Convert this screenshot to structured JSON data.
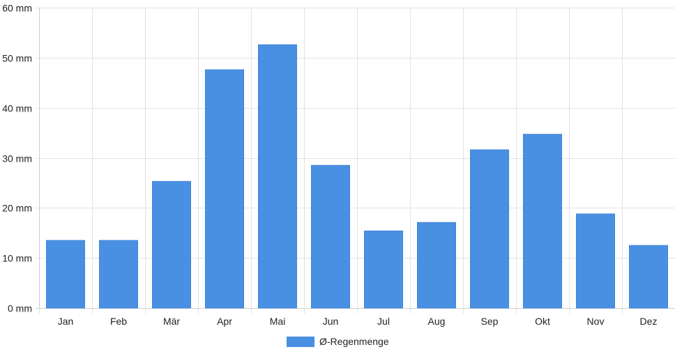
{
  "chart_data": {
    "type": "bar",
    "categories": [
      "Jan",
      "Feb",
      "Mär",
      "Apr",
      "Mai",
      "Jun",
      "Jul",
      "Aug",
      "Sep",
      "Okt",
      "Nov",
      "Dez"
    ],
    "series": [
      {
        "name": "Ø-Regenmenge",
        "values": [
          13.5,
          13.5,
          25.3,
          47.6,
          52.6,
          28.5,
          15.4,
          17.1,
          31.6,
          34.7,
          18.8,
          12.5
        ],
        "color": "#4a90e2"
      }
    ],
    "y_ticks": [
      "0 mm",
      "10 mm",
      "20 mm",
      "30 mm",
      "40 mm",
      "50 mm",
      "60 mm"
    ],
    "ylim": [
      0,
      60
    ],
    "grid": true,
    "legend_position": "bottom",
    "title": "",
    "xlabel": "",
    "ylabel": ""
  },
  "colors": {
    "grid": "#e2e2e2",
    "axis": "#cfcfcf",
    "text": "#222222",
    "bar": "#4a90e2"
  }
}
